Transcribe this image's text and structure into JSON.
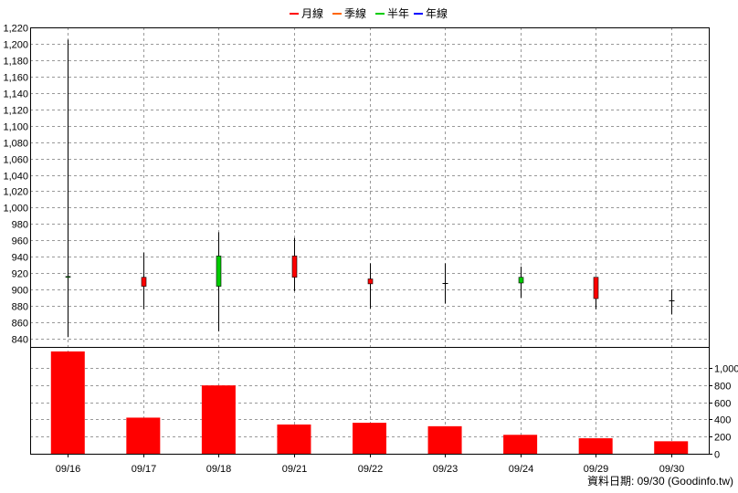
{
  "chart_data": [
    {
      "type": "candlestick",
      "legend": {
        "position": "top-center",
        "items": [
          {
            "label": "月線",
            "color": "#ff0000"
          },
          {
            "label": "季線",
            "color": "#ff6600"
          },
          {
            "label": "半年",
            "color": "#00cc00"
          },
          {
            "label": "年線",
            "color": "#0000ff"
          }
        ]
      },
      "categories": [
        "09/16",
        "09/17",
        "09/18",
        "09/21",
        "09/22",
        "09/23",
        "09/24",
        "09/29",
        "09/30"
      ],
      "ohlc": [
        {
          "open": 916,
          "high": 1205,
          "low": 842,
          "close": 915
        },
        {
          "open": 904,
          "high": 945,
          "low": 876,
          "close": 915
        },
        {
          "open": 941,
          "high": 970,
          "low": 849,
          "close": 904
        },
        {
          "open": 915,
          "high": 963,
          "low": 898,
          "close": 941
        },
        {
          "open": 907,
          "high": 932,
          "low": 877,
          "close": 913
        },
        {
          "open": 908,
          "high": 932,
          "low": 883,
          "close": 908
        },
        {
          "open": 915,
          "high": 928,
          "low": 890,
          "close": 908
        },
        {
          "open": 889,
          "high": 915,
          "low": 876,
          "close": 915
        },
        {
          "open": 887,
          "high": 900,
          "low": 870,
          "close": 887
        }
      ],
      "up_color": "#ff0000",
      "down_color": "#00cc00",
      "flat_color": "#000000",
      "ylim": [
        830,
        1220
      ],
      "yticks": [
        "840",
        "860",
        "880",
        "900",
        "920",
        "940",
        "960",
        "980",
        "1,000",
        "1,020",
        "1,040",
        "1,060",
        "1,080",
        "1,100",
        "1,120",
        "1,140",
        "1,160",
        "1,180",
        "1,200",
        "1,220"
      ],
      "ytick_values": [
        840,
        860,
        880,
        900,
        920,
        940,
        960,
        980,
        1000,
        1020,
        1040,
        1060,
        1080,
        1100,
        1120,
        1140,
        1160,
        1180,
        1200,
        1220
      ],
      "grid": true
    },
    {
      "type": "bar",
      "categories": [
        "09/16",
        "09/17",
        "09/18",
        "09/21",
        "09/22",
        "09/23",
        "09/24",
        "09/29",
        "09/30"
      ],
      "values": [
        1190,
        420,
        795,
        340,
        360,
        320,
        220,
        180,
        145
      ],
      "color": "#ff0000",
      "ylim": [
        0,
        1200
      ],
      "yticks": [
        "0",
        "200",
        "400",
        "600",
        "800",
        "1,000"
      ],
      "ytick_values": [
        0,
        200,
        400,
        600,
        800,
        1000
      ],
      "grid": true
    }
  ],
  "footer": {
    "text": "資料日期: 09/30  (Goodinfo.tw)"
  }
}
